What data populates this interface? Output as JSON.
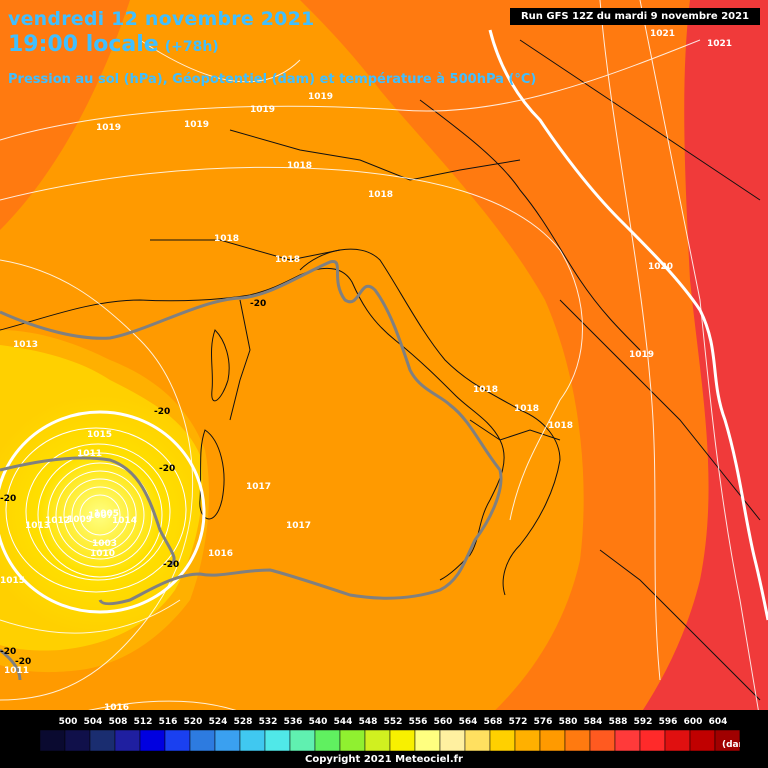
{
  "header": {
    "date_line": "vendredi 12 novembre 2021",
    "time_line": "19:00 locale",
    "lead_time": "(+78h)",
    "parameters": "Pression au sol (hPa), Géopotentiel (dam) et température à 500hPa (°C)",
    "run_info": "Run GFS 12Z du mardi 9 novembre 2021"
  },
  "pressure_labels": [
    "1021",
    "1021",
    "1019",
    "1019",
    "1019",
    "1019",
    "1018",
    "1018",
    "1018",
    "1018",
    "1020",
    "1019",
    "1018",
    "1018",
    "1018",
    "1013",
    "1015",
    "1011",
    "1013",
    "1012",
    "1009",
    "1007",
    "1005",
    "1014",
    "1003",
    "1010",
    "1017",
    "1017",
    "1016",
    "1015",
    "1011",
    "1016"
  ],
  "temperature_labels": [
    "-20",
    "-20",
    "-20",
    "-20",
    "-20",
    "-20",
    "-20"
  ],
  "legend": {
    "unit": "(dam)",
    "ticks": [
      "500",
      "504",
      "508",
      "512",
      "516",
      "520",
      "524",
      "528",
      "532",
      "536",
      "540",
      "544",
      "548",
      "552",
      "556",
      "560",
      "564",
      "568",
      "572",
      "576",
      "580",
      "584",
      "588",
      "592",
      "596",
      "600",
      "604"
    ],
    "colors": [
      "#0a0a30",
      "#10104a",
      "#1a2d70",
      "#1f1fa0",
      "#0000e0",
      "#1a40f0",
      "#2d7be0",
      "#3aa0f0",
      "#40c8f0",
      "#50e8e8",
      "#60f0b0",
      "#60f060",
      "#90f030",
      "#d0f020",
      "#f8f000",
      "#ffff80",
      "#fff0a0",
      "#ffe060",
      "#ffd000",
      "#ffb000",
      "#ff9a00",
      "#ff7a10",
      "#ff5a20",
      "#ff3a3a",
      "#ff2a2a",
      "#e01010",
      "#c00000",
      "#a00000",
      "#800000",
      "#600000",
      "#3a0000",
      "#000000"
    ]
  },
  "copyright": "Copyright 2021 Meteociel.fr"
}
